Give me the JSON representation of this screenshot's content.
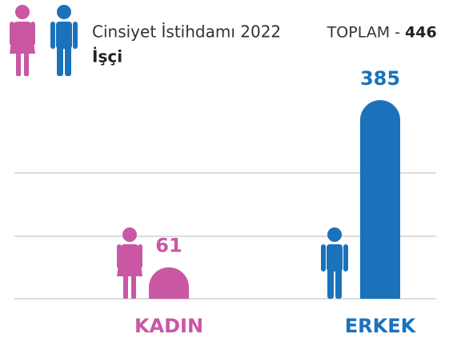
{
  "chart_data": {
    "type": "bar",
    "title": "Cinsiyet İstihdamı 2022",
    "subtitle": "İşçi",
    "total_label": "TOPLAM -",
    "total": 446,
    "categories": [
      "KADIN",
      "ERKEK"
    ],
    "values": [
      61,
      385
    ],
    "colors": [
      "#c957a4",
      "#1a72bb"
    ]
  }
}
